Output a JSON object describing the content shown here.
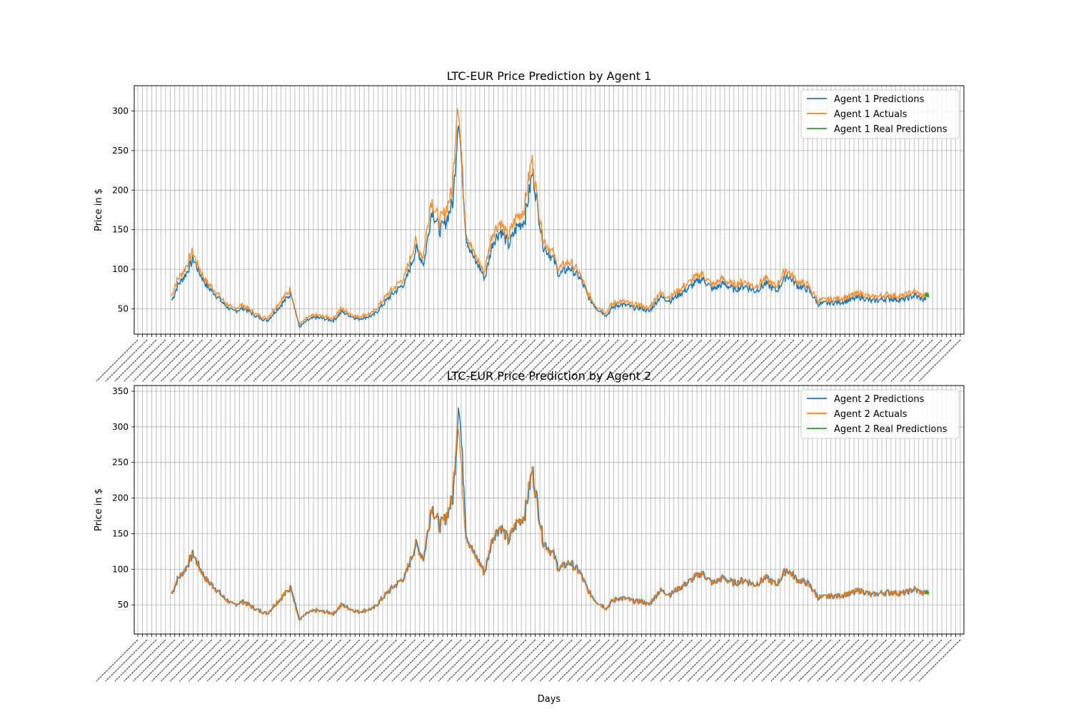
{
  "chart_data": [
    {
      "type": "line",
      "title": "LTC-EUR Price Prediction by Agent 1",
      "xlabel": "",
      "ylabel": "Price in $",
      "y_ticks": [
        50,
        100,
        150,
        200,
        250,
        300
      ],
      "ylim": [
        18,
        332
      ],
      "x_range_days": [
        0,
        2850
      ],
      "grid": true,
      "legend_placement": "top-right",
      "series": [
        {
          "name": "Agent 1 Predictions",
          "color": "#1f77b4",
          "role": "pred"
        },
        {
          "name": "Agent 1 Actuals",
          "color": "#ff7f0e",
          "role": "actual"
        },
        {
          "name": "Agent 1 Real Predictions",
          "color": "#2ca02c",
          "role": "real"
        }
      ]
    },
    {
      "type": "line",
      "title": "LTC-EUR Price Prediction by Agent 2",
      "xlabel": "Days",
      "ylabel": "Price in $",
      "y_ticks": [
        50,
        100,
        150,
        200,
        250,
        300,
        350
      ],
      "ylim": [
        9,
        358
      ],
      "x_range_days": [
        0,
        2850
      ],
      "grid": true,
      "legend_placement": "top-right",
      "series": [
        {
          "name": "Agent 2 Predictions",
          "color": "#1f77b4",
          "role": "pred"
        },
        {
          "name": "Agent 2 Actuals",
          "color": "#ff7f0e",
          "role": "actual"
        },
        {
          "name": "Agent 2 Real Predictions",
          "color": "#2ca02c",
          "role": "real"
        }
      ]
    }
  ],
  "shared_actuals": {
    "x_days": [
      0,
      20,
      50,
      80,
      100,
      130,
      160,
      190,
      230,
      270,
      320,
      360,
      400,
      450,
      480,
      510,
      540,
      580,
      610,
      640,
      700,
      760,
      820,
      880,
      920,
      950,
      980,
      1010,
      1030,
      1060,
      1080,
      1110,
      1140,
      1160,
      1180,
      1210,
      1240,
      1270,
      1300,
      1330,
      1360,
      1380,
      1400,
      1420,
      1440,
      1460,
      1500,
      1540,
      1570,
      1600,
      1640,
      1660,
      1690,
      1720,
      1740,
      1770,
      1800,
      1840,
      1880,
      1920,
      1960,
      2000,
      2040,
      2080,
      2120,
      2160,
      2200,
      2240,
      2280,
      2320,
      2360,
      2400,
      2440,
      2480,
      2520,
      2560,
      2600,
      2640,
      2700,
      2760,
      2800,
      2830
    ],
    "values": [
      66,
      85,
      100,
      122,
      105,
      85,
      75,
      62,
      50,
      55,
      43,
      38,
      55,
      75,
      29,
      38,
      42,
      40,
      38,
      50,
      40,
      45,
      70,
      90,
      135,
      115,
      190,
      160,
      170,
      200,
      320,
      150,
      120,
      110,
      95,
      145,
      160,
      140,
      165,
      175,
      240,
      190,
      140,
      130,
      120,
      100,
      110,
      95,
      70,
      55,
      45,
      55,
      60,
      58,
      55,
      55,
      50,
      70,
      65,
      75,
      85,
      95,
      80,
      88,
      80,
      85,
      78,
      88,
      78,
      100,
      85,
      80,
      60,
      62,
      63,
      66,
      70,
      64,
      68,
      66,
      72,
      67
    ]
  }
}
